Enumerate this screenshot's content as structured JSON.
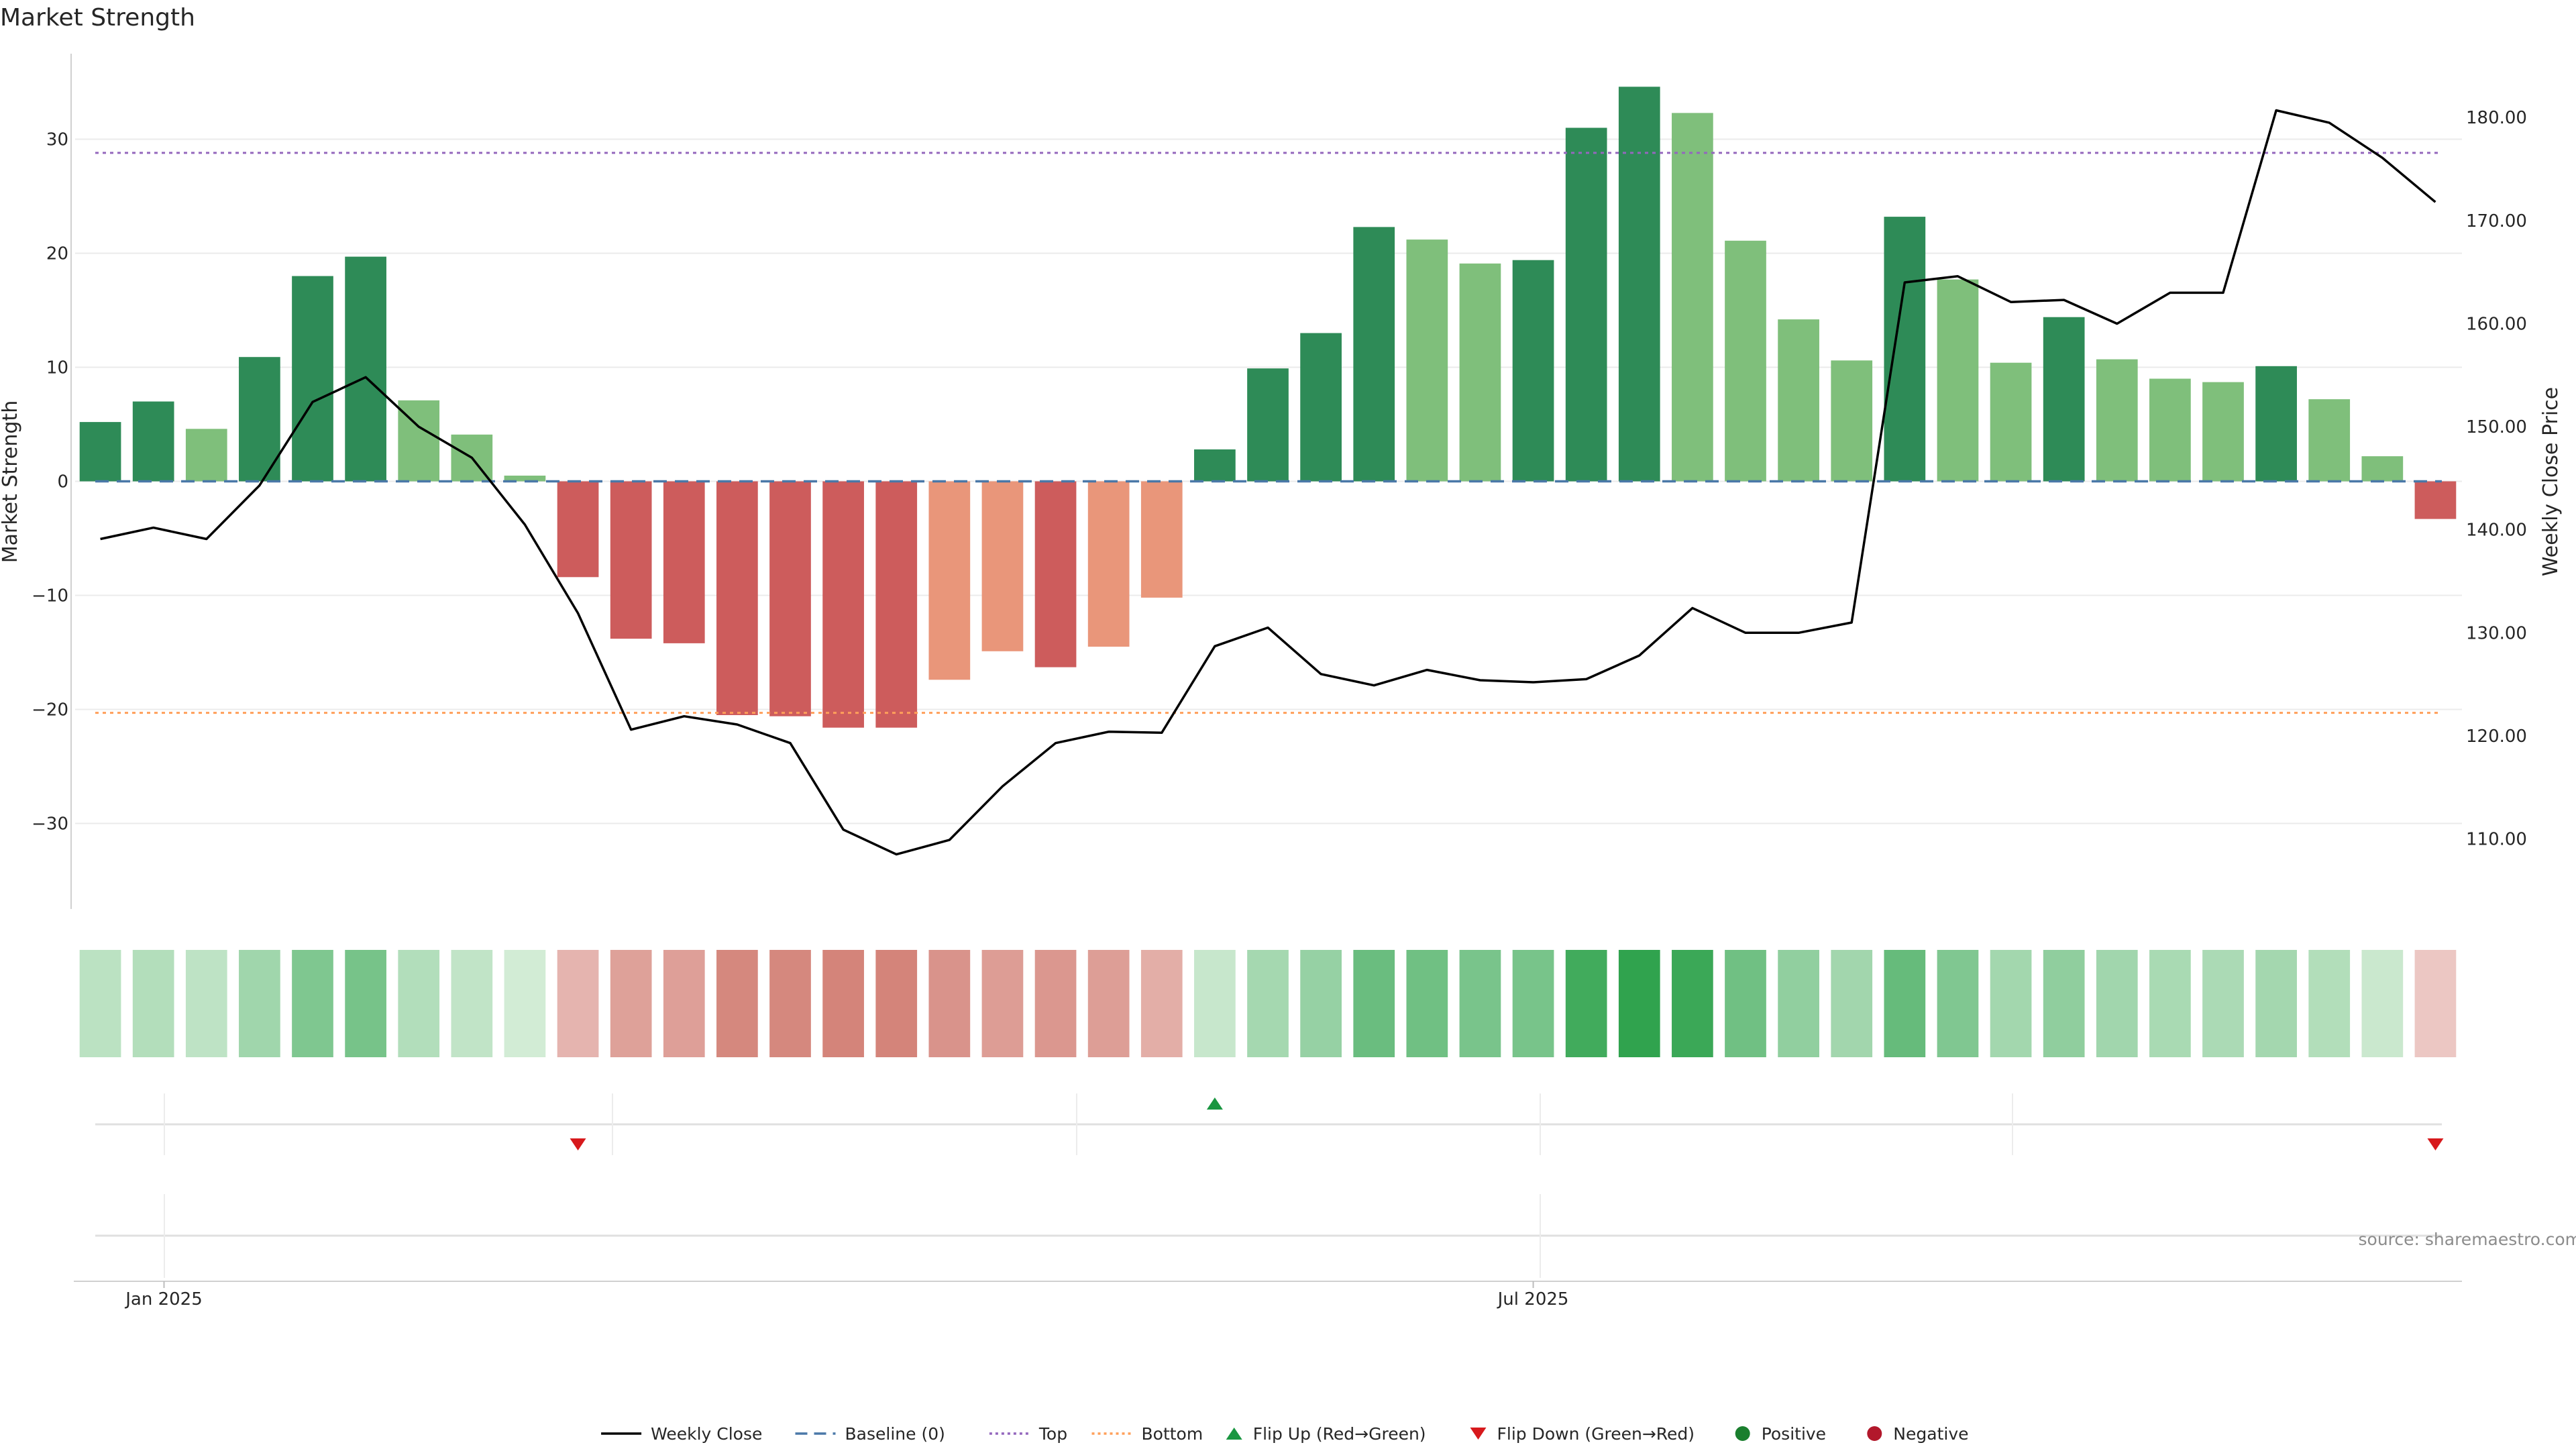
{
  "chart_data": {
    "type": "bar",
    "title": "Market Strength",
    "ylabel": "Market Strength",
    "y2label": "Weekly Close Price",
    "ylim": [
      -37.5,
      37.5
    ],
    "y2lim": [
      103.2,
      186.2
    ],
    "yticks": [
      30,
      20,
      10,
      0,
      -10,
      -20,
      -30
    ],
    "y2ticks": [
      180,
      170,
      160,
      150,
      140,
      130,
      120,
      110
    ],
    "y2tick_labels": [
      "180.00",
      "170.00",
      "160.00",
      "150.00",
      "140.00",
      "130.00",
      "120.00",
      "110.00"
    ],
    "x_tick_labels": [
      "Jan 2025",
      "Jul 2025"
    ],
    "x_tick_index": [
      1.7,
      27.5
    ],
    "top_threshold": 28.8,
    "bottom_threshold": -20.3,
    "baseline": 0,
    "values": [
      5.2,
      7.0,
      4.6,
      10.9,
      18.0,
      19.7,
      7.1,
      4.1,
      0.5,
      -8.4,
      -13.8,
      -14.2,
      -20.5,
      -20.6,
      -21.6,
      -21.6,
      -17.4,
      -14.9,
      -16.3,
      -14.5,
      -10.2,
      2.8,
      9.9,
      13.0,
      22.3,
      21.2,
      19.1,
      19.4,
      31.0,
      34.6,
      32.3,
      21.1,
      14.2,
      10.6,
      23.2,
      17.7,
      10.4,
      14.4,
      10.7,
      9.0,
      8.7,
      10.1,
      7.2,
      2.2,
      -3.3
    ],
    "bar_colors": [
      "#2e8b57",
      "#2e8b57",
      "#7fbf7b",
      "#2e8b57",
      "#2e8b57",
      "#2e8b57",
      "#7fbf7b",
      "#7fbf7b",
      "#7fbf7b",
      "#cd5c5c",
      "#cd5c5c",
      "#cd5c5c",
      "#cd5c5c",
      "#cd5c5c",
      "#cd5c5c",
      "#cd5c5c",
      "#e9967a",
      "#e9967a",
      "#cd5c5c",
      "#e9967a",
      "#e9967a",
      "#2e8b57",
      "#2e8b57",
      "#2e8b57",
      "#2e8b57",
      "#7fbf7b",
      "#7fbf7b",
      "#2e8b57",
      "#2e8b57",
      "#2e8b57",
      "#7fbf7b",
      "#7fbf7b",
      "#7fbf7b",
      "#7fbf7b",
      "#2e8b57",
      "#7fbf7b",
      "#7fbf7b",
      "#2e8b57",
      "#7fbf7b",
      "#7fbf7b",
      "#7fbf7b",
      "#2e8b57",
      "#7fbf7b",
      "#7fbf7b",
      "#cd5c5c"
    ],
    "weekly_close": [
      139.1,
      140.2,
      139.1,
      144.3,
      152.4,
      154.8,
      150.0,
      147.0,
      140.5,
      131.9,
      120.6,
      121.9,
      121.1,
      119.3,
      110.9,
      108.5,
      109.9,
      115.1,
      119.3,
      120.4,
      120.3,
      128.7,
      130.5,
      126.0,
      124.9,
      126.4,
      125.4,
      125.2,
      125.5,
      127.8,
      132.4,
      130.0,
      130.0,
      131.0,
      164.0,
      164.6,
      162.1,
      162.3,
      160.0,
      163.0,
      163.0,
      180.7,
      179.5,
      176.1,
      171.8
    ],
    "flip_up_index": [
      21
    ],
    "flip_down_index": [
      9,
      44
    ],
    "legend": [
      {
        "label": "Weekly Close",
        "type": "line-solid",
        "color": "#000000"
      },
      {
        "label": "Baseline (0)",
        "type": "line-dashed",
        "color": "#4a78a8"
      },
      {
        "label": "Top",
        "type": "line-dotted",
        "color": "#9467bd"
      },
      {
        "label": "Bottom",
        "type": "line-dotted",
        "color": "#ff9f5a"
      },
      {
        "label": "Flip Up (Red→Green)",
        "type": "triangle-up",
        "color": "#1a9641"
      },
      {
        "label": "Flip Down (Green→Red)",
        "type": "triangle-down",
        "color": "#d7191c"
      },
      {
        "label": "Positive",
        "type": "dot",
        "color": "#1a7f2e"
      },
      {
        "label": "Negative",
        "type": "dot",
        "color": "#b2182b"
      }
    ],
    "legend_position": "bottom-center",
    "source": "source: sharemaestro.com",
    "heatmap_strip": true
  }
}
